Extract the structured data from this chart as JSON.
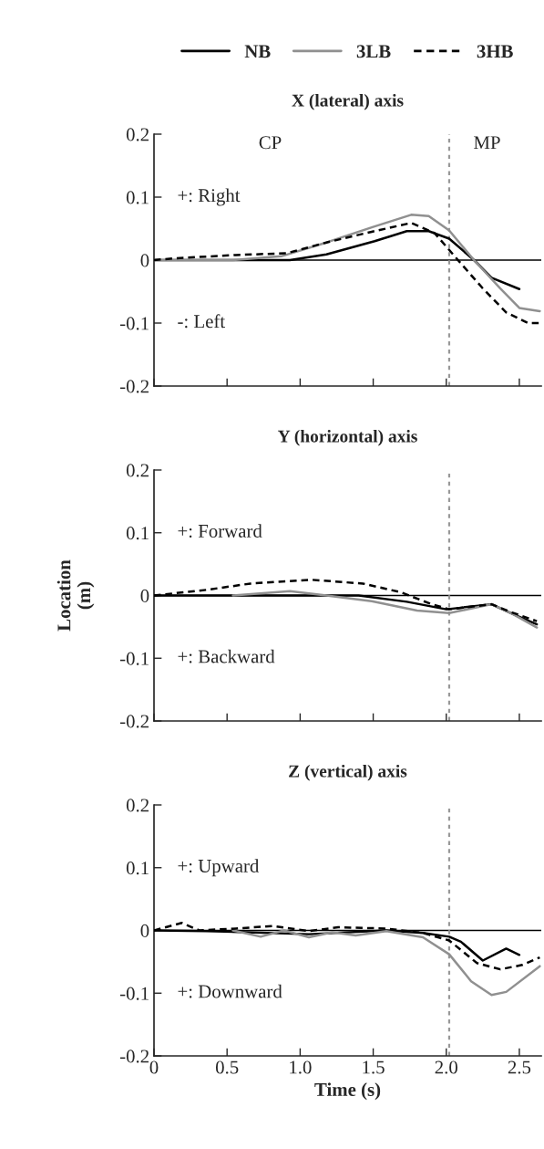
{
  "chart_data": [
    {
      "type": "line",
      "title": "X (lateral) axis",
      "xlim": [
        0,
        2.65
      ],
      "xticks": [
        {
          "value": 0,
          "label": null
        },
        {
          "value": 0.5,
          "label": null
        },
        {
          "value": 1.0,
          "label": null
        },
        {
          "value": 1.5,
          "label": null
        },
        {
          "value": 2.0,
          "label": null
        },
        {
          "value": 2.5,
          "label": null
        }
      ],
      "ylim": [
        -0.2,
        0.2
      ],
      "yticks": [
        -0.2,
        -0.1,
        0,
        0.1,
        0.2
      ],
      "tick_labels": "y",
      "legend": "top",
      "grid": false,
      "annotations": [
        "CP",
        "MP",
        "+: Right",
        "-: Left"
      ],
      "ref_lines": [
        {
          "axis": "y",
          "value": 0,
          "color": "#000000",
          "line_style": "solid"
        },
        {
          "axis": "x",
          "value": 2.02,
          "color": "#999999",
          "line_style": "dotted"
        }
      ],
      "series": [
        {
          "name": "NB",
          "color": "#000000",
          "line_style": "solid",
          "x": [
            0,
            0.5,
            0.93,
            1.18,
            1.51,
            1.73,
            1.88,
            2.02,
            2.19,
            2.31,
            2.5
          ],
          "values": [
            0,
            0,
            0,
            0.009,
            0.03,
            0.046,
            0.046,
            0.034,
            0,
            -0.028,
            -0.046
          ]
        },
        {
          "name": "3LB",
          "color": "#909090",
          "line_style": "solid",
          "x": [
            0,
            0.54,
            0.87,
            1.18,
            1.49,
            1.76,
            1.88,
            2.02,
            2.19,
            2.37,
            2.5,
            2.64
          ],
          "values": [
            0,
            0,
            0.006,
            0.028,
            0.052,
            0.072,
            0.07,
            0.047,
            0,
            -0.045,
            -0.076,
            -0.081
          ]
        },
        {
          "name": "3HB",
          "color": "#000000",
          "line_style": "dashed",
          "x": [
            0,
            0.15,
            0.56,
            0.91,
            1.18,
            1.49,
            1.76,
            1.92,
            2.08,
            2.25,
            2.41,
            2.56,
            2.64
          ],
          "values": [
            0,
            0.003,
            0.008,
            0.011,
            0.028,
            0.045,
            0.059,
            0.043,
            0,
            -0.045,
            -0.083,
            -0.1,
            -0.1
          ]
        }
      ]
    },
    {
      "type": "line",
      "title": "Y (horizontal) axis",
      "ylabel": "Location\n(m)",
      "xlim": [
        0,
        2.65
      ],
      "xticks": [
        {
          "value": 0,
          "label": null
        },
        {
          "value": 0.5,
          "label": null
        },
        {
          "value": 1.0,
          "label": null
        },
        {
          "value": 1.5,
          "label": null
        },
        {
          "value": 2.0,
          "label": null
        },
        {
          "value": 2.5,
          "label": null
        }
      ],
      "ylim": [
        -0.2,
        0.2
      ],
      "yticks": [
        -0.2,
        -0.1,
        0,
        0.1,
        0.2
      ],
      "tick_labels": "y",
      "grid": false,
      "annotations": [
        "+: Forward",
        "+: Backward"
      ],
      "ref_lines": [
        {
          "axis": "y",
          "value": 0,
          "color": "#000000",
          "line_style": "solid"
        },
        {
          "axis": "x",
          "value": 2.02,
          "color": "#999999",
          "line_style": "dotted"
        }
      ],
      "series": [
        {
          "color": "#000000",
          "line_style": "solid",
          "x": [
            0,
            0.7,
            1.4,
            1.73,
            2.0,
            2.31,
            2.45,
            2.62
          ],
          "values": [
            0,
            0,
            0,
            -0.01,
            -0.022,
            -0.014,
            -0.029,
            -0.046
          ]
        },
        {
          "color": "#909090",
          "line_style": "solid",
          "x": [
            0.54,
            0.93,
            1.18,
            1.49,
            1.8,
            2.02,
            2.31,
            2.45,
            2.62
          ],
          "values": [
            0,
            0.007,
            0,
            -0.009,
            -0.024,
            -0.028,
            -0.014,
            -0.029,
            -0.051
          ]
        },
        {
          "color": "#000000",
          "line_style": "dashed",
          "x": [
            0,
            0.36,
            0.66,
            1.08,
            1.43,
            1.69,
            1.9,
            2.02,
            2.31,
            2.45,
            2.62
          ],
          "values": [
            0,
            0.009,
            0.019,
            0.025,
            0.019,
            0.005,
            -0.014,
            -0.022,
            -0.014,
            -0.027,
            -0.041
          ]
        }
      ]
    },
    {
      "type": "line",
      "title": "Z (vertical) axis",
      "xlabel": "Time (s)",
      "xlim": [
        0,
        2.65
      ],
      "xticks": [
        0,
        0.5,
        {
          "value": 1.0,
          "label": "1.0"
        },
        1.5,
        {
          "value": 2.0,
          "label": "2.0"
        },
        2.5
      ],
      "ylim": [
        -0.2,
        0.2
      ],
      "yticks": [
        -0.2,
        -0.1,
        0,
        0.1,
        0.2
      ],
      "grid": false,
      "annotations": [
        "+: Upward",
        "+: Downward"
      ],
      "ref_lines": [
        {
          "axis": "y",
          "value": 0,
          "color": "#000000",
          "line_style": "solid"
        },
        {
          "axis": "x",
          "value": 2.02,
          "color": "#999999",
          "line_style": "dotted"
        }
      ],
      "series": [
        {
          "color": "#000000",
          "line_style": "solid",
          "x": [
            0,
            0.36,
            1.06,
            1.59,
            1.84,
            2.02,
            2.1,
            2.25,
            2.41,
            2.5
          ],
          "values": [
            0,
            -0.001,
            -0.006,
            0,
            -0.004,
            -0.01,
            -0.018,
            -0.048,
            -0.029,
            -0.039
          ]
        },
        {
          "color": "#909090",
          "line_style": "solid",
          "x": [
            0.54,
            0.73,
            0.89,
            1.06,
            1.22,
            1.38,
            1.59,
            1.84,
            2.02,
            2.17,
            2.31,
            2.41,
            2.64
          ],
          "values": [
            0,
            -0.01,
            0,
            -0.011,
            -0.003,
            -0.008,
            -0.001,
            -0.011,
            -0.038,
            -0.081,
            -0.103,
            -0.098,
            -0.057
          ]
        },
        {
          "color": "#000000",
          "line_style": "dashed",
          "x": [
            0,
            0.19,
            0.31,
            0.56,
            0.81,
            1.06,
            1.26,
            1.59,
            1.84,
            2.02,
            2.21,
            2.37,
            2.52,
            2.64
          ],
          "values": [
            0,
            0.012,
            0,
            0.003,
            0.007,
            -0.001,
            0.005,
            0.003,
            -0.004,
            -0.016,
            -0.052,
            -0.062,
            -0.055,
            -0.043
          ]
        }
      ]
    }
  ]
}
